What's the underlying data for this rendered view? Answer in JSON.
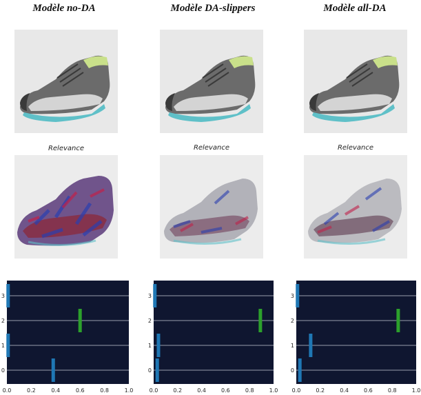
{
  "columns": [
    {
      "title": "Modèle no-DA",
      "relevance_label": "Relevance"
    },
    {
      "title": "Modèle DA-slippers",
      "relevance_label": "Relevance"
    },
    {
      "title": "Modèle all-DA",
      "relevance_label": "Relevance"
    }
  ],
  "colors": {
    "plot_bg": "#0f1630",
    "grid": "#c8ccd6",
    "blue_bar": "#1f77b4",
    "green_bar": "#2ca02c",
    "shoe_gray": "#6b6b6b",
    "shoe_dark": "#3a3a3a",
    "shoe_light": "#d4d4d4",
    "accent_lime": "#c9e08a",
    "accent_teal": "#5fc0c8"
  },
  "chart_data": [
    {
      "type": "bar",
      "orientation": "horizontal",
      "title": "Modèle no-DA",
      "categories": [
        "0",
        "1",
        "2",
        "3"
      ],
      "values": [
        0.38,
        0.01,
        0.6,
        0.01
      ],
      "highlight_index": 2,
      "xlim": [
        0,
        1
      ],
      "xticks": [
        "0.0",
        "0.2",
        "0.4",
        "0.6",
        "0.8",
        "1.0"
      ],
      "yticks": [
        "0",
        "1",
        "2",
        "3"
      ]
    },
    {
      "type": "bar",
      "orientation": "horizontal",
      "title": "Modèle DA-slippers",
      "categories": [
        "0",
        "1",
        "2",
        "3"
      ],
      "values": [
        0.03,
        0.04,
        0.89,
        0.01
      ],
      "highlight_index": 2,
      "xlim": [
        0,
        1
      ],
      "xticks": [
        "0.0",
        "0.2",
        "0.4",
        "0.6",
        "0.8",
        "1.0"
      ],
      "yticks": [
        "0",
        "1",
        "2",
        "3"
      ]
    },
    {
      "type": "bar",
      "orientation": "horizontal",
      "title": "Modèle all-DA",
      "categories": [
        "0",
        "1",
        "2",
        "3"
      ],
      "values": [
        0.03,
        0.12,
        0.85,
        0.01
      ],
      "highlight_index": 2,
      "xlim": [
        0,
        1
      ],
      "xticks": [
        "0.0",
        "0.2",
        "0.4",
        "0.6",
        "0.8",
        "1.0"
      ],
      "yticks": [
        "0",
        "1",
        "2",
        "3"
      ]
    }
  ]
}
